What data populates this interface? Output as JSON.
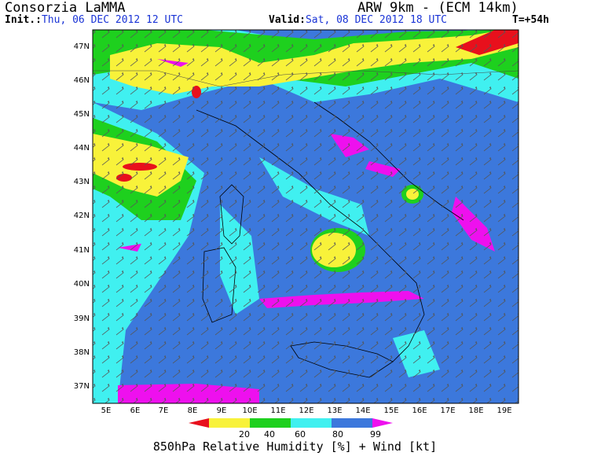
{
  "header": {
    "organization": "Consorzia LaMMA",
    "model": "ARW 9km - (ECM 14km)",
    "init_label": "Init.:",
    "init_value": "Thu, 06 DEC 2012  12 UTC",
    "valid_label": "Valid:",
    "valid_value": "Sat, 08 DEC 2012  18 UTC",
    "forecast_step": "T=+54h"
  },
  "map": {
    "lat_labels": [
      "47N",
      "46N",
      "45N",
      "44N",
      "43N",
      "42N",
      "41N",
      "40N",
      "39N",
      "38N",
      "37N"
    ],
    "lon_labels": [
      "5E",
      "6E",
      "7E",
      "8E",
      "9E",
      "10E",
      "11E",
      "12E",
      "13E",
      "14E",
      "15E",
      "16E",
      "17E",
      "18E",
      "19E"
    ]
  },
  "colorbar": {
    "ticks": [
      "20",
      "40",
      "60",
      "80",
      "99"
    ],
    "colors": [
      "#e8101c",
      "#f8f23a",
      "#1ed01e",
      "#40f0f0",
      "#3c78dc",
      "#ee10ee"
    ],
    "title": "850hPa Relative Humidity [%] + Wind [kt]"
  }
}
